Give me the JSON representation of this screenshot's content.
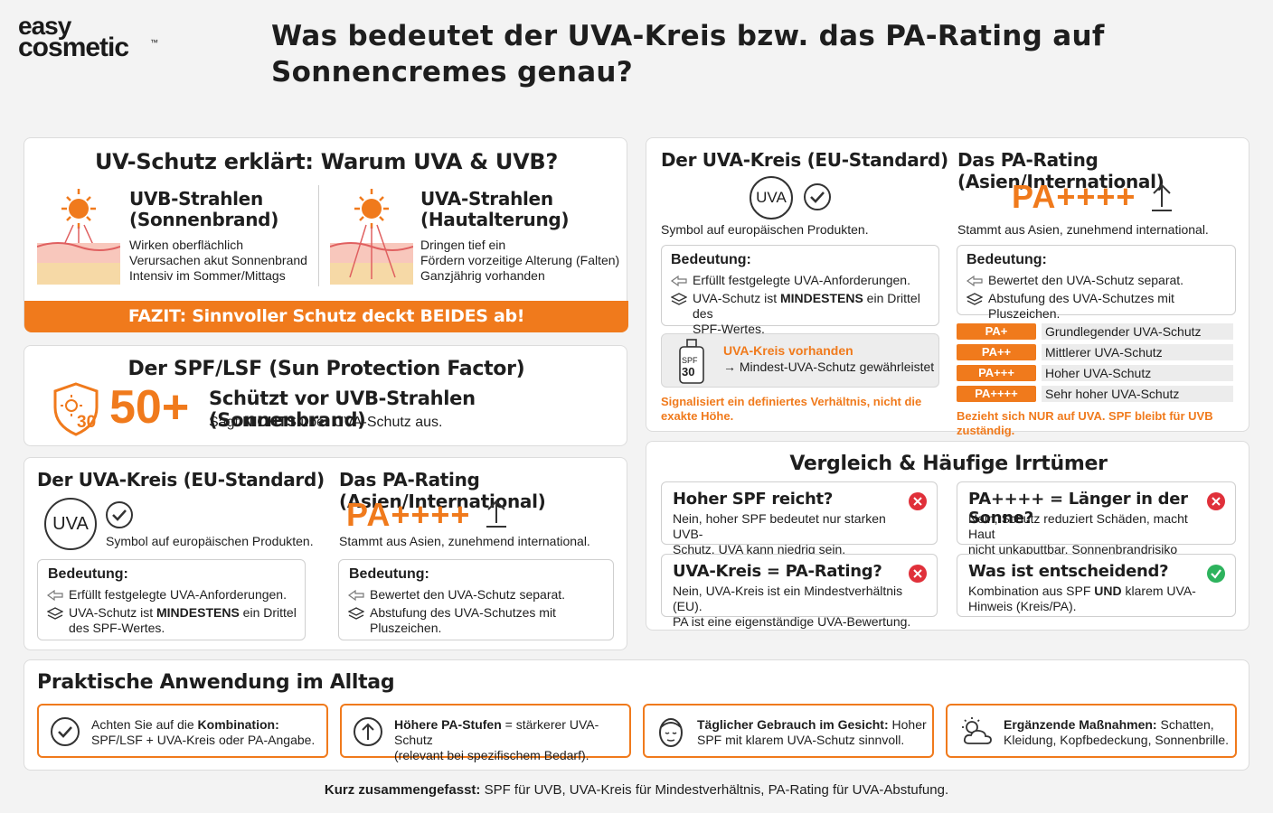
{
  "brand": {
    "line1": "easy",
    "line2": "cosmetic",
    "tm": "™"
  },
  "headline": {
    "line1": "Was bedeutet der UVA-Kreis bzw. das PA-Rating auf",
    "line2": "Sonnencremes genau?"
  },
  "uv_card": {
    "title": "UV-Schutz erklärt: Warum UVA & UVB?",
    "uvb": {
      "title1": "UVB-Strahlen",
      "title2": "(Sonnenbrand)",
      "lines": [
        "Wirken oberflächlich",
        "Verursachen akut Sonnenbrand",
        "Intensiv im Sommer/Mittags"
      ]
    },
    "uva": {
      "title1": "UVA-Strahlen",
      "title2": "(Hautalterung)",
      "lines": [
        "Dringen tief ein",
        "Fördern vorzeitige Alterung (Falten)",
        "Ganzjährig vorhanden"
      ]
    },
    "fazit": "FAZIT: Sinnvoller Schutz deckt BEIDES ab!"
  },
  "spf_card": {
    "title": "Der SPF/LSF (Sun Protection Factor)",
    "shield_number": "30",
    "big": "50+",
    "line1": "Schützt vor UVB-Strahlen (Sonnenbrand)",
    "line2_pre": "Sagt ",
    "line2_bold": "NICHTS",
    "line2_post": " über UVA-Schutz aus."
  },
  "eu_pa_left": {
    "eu_title": "Der UVA-Kreis (EU-Standard)",
    "uva_symbol": "UVA",
    "eu_caption": "Symbol auf europäischen Produkten.",
    "eu_meaning_title": "Bedeutung:",
    "eu_item1": "Erfüllt festgelegte UVA-Anforderungen.",
    "eu_item2_pre": "UVA-Schutz ist ",
    "eu_item2_bold": "MINDESTENS",
    "eu_item2_post": " ein Drittel",
    "eu_item2_line2": "des SPF-Wertes.",
    "pa_title": "Das PA-Rating (Asien/International)",
    "pa_big": "PA++++",
    "pa_caption": "Stammt aus Asien, zunehmend international.",
    "pa_meaning_title": "Bedeutung:",
    "pa_item1": "Bewertet den UVA-Schutz separat.",
    "pa_item2": "Abstufung des UVA-Schutzes mit",
    "pa_item2_line2": "Pluszeichen."
  },
  "eu_right": {
    "title": "Der UVA-Kreis (EU-Standard)",
    "uva_symbol": "UVA",
    "caption": "Symbol auf europäischen Produkten.",
    "meaning_title": "Bedeutung:",
    "item1": "Erfüllt festgelegte UVA-Anforderungen.",
    "item2_pre": "UVA-Schutz ist ",
    "item2_bold": "MINDESTENS",
    "item2_post": " ein Drittel des",
    "item2_line2": "SPF-Wertes.",
    "bottle_spf": "SPF",
    "bottle_num": "30",
    "present_title": "UVA-Kreis vorhanden",
    "present_text": "→ Mindest-UVA-Schutz gewährleistet",
    "note1": "Signalisiert ein definiertes Verhältnis, nicht die",
    "note2": "exakte Höhe."
  },
  "pa_right": {
    "title": "Das PA-Rating (Asien/International)",
    "big": "PA++++",
    "caption": "Stammt aus Asien, zunehmend international.",
    "meaning_title": "Bedeutung:",
    "item1": "Bewertet den UVA-Schutz separat.",
    "item2": "Abstufung des UVA-Schutzes mit Pluszeichen.",
    "levels": [
      {
        "label": "PA+",
        "desc": "Grundlegender UVA-Schutz"
      },
      {
        "label": "PA++",
        "desc": "Mittlerer UVA-Schutz"
      },
      {
        "label": "PA+++",
        "desc": "Hoher UVA-Schutz"
      },
      {
        "label": "PA++++",
        "desc": "Sehr hoher UVA-Schutz"
      }
    ],
    "note": "Bezieht sich NUR auf UVA. SPF bleibt für UVB zuständig."
  },
  "myths": {
    "title": "Vergleich & Häufige Irrtümer",
    "m1": {
      "q": "Hoher SPF reicht?",
      "a1": "Nein, hoher SPF bedeutet nur starken UVB-",
      "a2": "Schutz. UVA kann niedrig sein."
    },
    "m2": {
      "q": "PA++++ = Länger in der Sonne?",
      "a1": "Nein, Schutz reduziert Schäden, macht Haut",
      "a2": "nicht unkaputtbar. Sonnenbrandrisiko bleibt."
    },
    "m3": {
      "q": "UVA-Kreis = PA-Rating?",
      "a1": "Nein, UVA-Kreis ist ein Mindestverhältnis (EU).",
      "a2": "PA ist eine eigenständige UVA-Bewertung."
    },
    "m4": {
      "q": "Was ist entscheidend?",
      "a1_pre": "Kombination aus SPF ",
      "a1_bold": "UND",
      "a1_post": " klarem UVA-",
      "a2": "Hinweis (Kreis/PA)."
    }
  },
  "practice": {
    "title": "Praktische Anwendung im Alltag",
    "t1": {
      "pre": "Achten Sie auf die ",
      "bold": "Kombination:",
      "line2": "SPF/LSF + UVA-Kreis oder PA-Angabe."
    },
    "t2": {
      "bold": "Höhere PA-Stufen",
      "post": " = stärkerer UVA-Schutz",
      "line2": "(relevant bei spezifischem Bedarf)."
    },
    "t3": {
      "bold": "Täglicher Gebrauch im Gesicht:",
      "post": " Hoher",
      "line2": "SPF mit klarem UVA-Schutz sinnvoll."
    },
    "t4": {
      "bold": "Ergänzende Maßnahmen:",
      "post": " Schatten,",
      "line2": "Kleidung, Kopfbedeckung, Sonnenbrille."
    }
  },
  "footer": {
    "bold": "Kurz zusammengefasst:",
    "text": " SPF für UVB, UVA-Kreis für Mindestverhältnis, PA-Rating für UVA-Abstufung."
  },
  "colors": {
    "accent": "#f07a1c",
    "success": "#2db35d",
    "error": "#e0303a"
  }
}
